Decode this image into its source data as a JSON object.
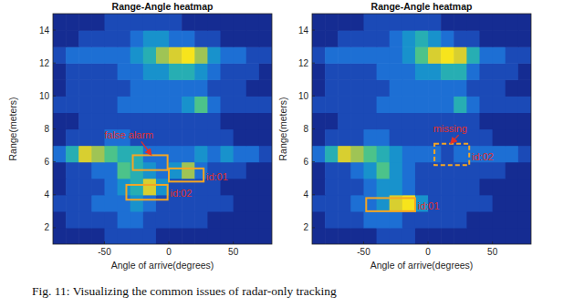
{
  "chart_data": [
    {
      "type": "heatmap",
      "title": "Range-Angle heatmap",
      "x_label": "Angle of arrive(degrees)",
      "y_label": "Range(meters)",
      "xlim": [
        -90,
        80
      ],
      "ylim": [
        1,
        15
      ],
      "xticks": [
        -50,
        0,
        50
      ],
      "yticks": [
        2,
        4,
        6,
        8,
        10,
        12,
        14
      ],
      "angle_bins": [
        -90,
        -80,
        -70,
        -60,
        -50,
        -40,
        -30,
        -20,
        -10,
        0,
        10,
        20,
        30,
        40,
        50,
        60,
        70,
        80
      ],
      "range_bins": [
        1,
        2,
        3,
        4,
        5,
        6,
        7,
        8,
        9,
        10,
        11,
        12,
        13,
        14,
        15
      ],
      "color_range": [
        0,
        9
      ],
      "cells": [
        [
          1,
          1,
          1,
          1,
          2,
          2,
          2,
          2,
          1,
          1,
          1,
          1,
          1,
          1,
          1,
          1,
          1
        ],
        [
          1,
          2,
          2,
          2,
          2,
          3,
          3,
          2,
          2,
          2,
          2,
          2,
          1,
          1,
          1,
          1,
          1
        ],
        [
          2,
          2,
          2,
          3,
          3,
          3,
          4,
          3,
          2,
          2,
          2,
          2,
          2,
          2,
          1,
          1,
          1
        ],
        [
          1,
          2,
          2,
          2,
          3,
          4,
          5,
          8,
          4,
          2,
          2,
          2,
          2,
          1,
          1,
          1,
          1
        ],
        [
          1,
          2,
          2,
          3,
          3,
          6,
          5,
          4,
          3,
          4,
          7,
          3,
          2,
          2,
          2,
          1,
          1
        ],
        [
          3,
          5,
          8,
          7,
          6,
          5,
          5,
          3,
          3,
          3,
          3,
          4,
          3,
          4,
          3,
          3,
          2
        ],
        [
          1,
          2,
          2,
          2,
          3,
          3,
          2,
          2,
          2,
          2,
          2,
          2,
          2,
          2,
          1,
          1,
          1
        ],
        [
          1,
          1,
          2,
          2,
          2,
          2,
          2,
          2,
          2,
          2,
          2,
          2,
          2,
          1,
          1,
          1,
          1
        ],
        [
          2,
          2,
          2,
          2,
          2,
          3,
          3,
          3,
          3,
          3,
          4,
          6,
          3,
          2,
          2,
          2,
          2
        ],
        [
          1,
          2,
          2,
          2,
          2,
          2,
          3,
          3,
          3,
          3,
          3,
          3,
          2,
          2,
          2,
          1,
          1
        ],
        [
          1,
          2,
          2,
          2,
          2,
          3,
          3,
          4,
          4,
          5,
          5,
          4,
          3,
          2,
          2,
          2,
          1
        ],
        [
          2,
          3,
          3,
          3,
          3,
          3,
          4,
          5,
          7,
          8,
          9,
          7,
          4,
          3,
          3,
          2,
          2
        ],
        [
          1,
          1,
          2,
          2,
          2,
          2,
          3,
          4,
          4,
          3,
          3,
          2,
          2,
          1,
          1,
          1,
          1
        ],
        [
          1,
          1,
          1,
          1,
          2,
          2,
          2,
          2,
          2,
          2,
          1,
          1,
          1,
          1,
          1,
          1,
          1
        ]
      ],
      "boxes": [
        {
          "x": [
            -28,
            -1
          ],
          "y": [
            5.5,
            6.4
          ],
          "line_style": "solid"
        },
        {
          "x": [
            0,
            27
          ],
          "y": [
            4.8,
            5.6
          ],
          "line_style": "solid",
          "label": "id:01",
          "label_at": [
            29,
            5.1
          ]
        },
        {
          "x": [
            -33,
            -1
          ],
          "y": [
            3.7,
            4.6
          ],
          "line_style": "solid",
          "label": "id:02",
          "label_at": [
            1,
            4.1
          ]
        }
      ],
      "notes": [
        {
          "text": "false alarm",
          "at": [
            -50,
            7.4
          ],
          "arrow_to": [
            -14,
            6.45
          ]
        }
      ]
    },
    {
      "type": "heatmap",
      "title": "Range-Angle heatmap",
      "x_label": "Angle of arrive(degrees)",
      "y_label": "Range(meters)",
      "xlim": [
        -90,
        80
      ],
      "ylim": [
        1,
        15
      ],
      "xticks": [
        -50,
        0,
        50
      ],
      "yticks": [
        2,
        4,
        6,
        8,
        10,
        12,
        14
      ],
      "angle_bins": [
        -90,
        -80,
        -70,
        -60,
        -50,
        -40,
        -30,
        -20,
        -10,
        0,
        10,
        20,
        30,
        40,
        50,
        60,
        70,
        80
      ],
      "range_bins": [
        1,
        2,
        3,
        4,
        5,
        6,
        7,
        8,
        9,
        10,
        11,
        12,
        13,
        14,
        15
      ],
      "color_range": [
        0,
        9
      ],
      "cells": [
        [
          1,
          1,
          1,
          1,
          1,
          2,
          2,
          2,
          1,
          1,
          1,
          1,
          1,
          1,
          1,
          1,
          1
        ],
        [
          1,
          2,
          2,
          2,
          3,
          3,
          3,
          2,
          2,
          2,
          2,
          2,
          1,
          1,
          1,
          1,
          1
        ],
        [
          2,
          2,
          2,
          3,
          3,
          4,
          8,
          9,
          4,
          2,
          2,
          2,
          2,
          2,
          1,
          1,
          1
        ],
        [
          1,
          2,
          2,
          2,
          3,
          4,
          4,
          3,
          2,
          2,
          2,
          2,
          2,
          1,
          1,
          1,
          1
        ],
        [
          1,
          2,
          2,
          3,
          4,
          6,
          4,
          3,
          2,
          2,
          2,
          2,
          2,
          2,
          2,
          1,
          1
        ],
        [
          3,
          5,
          8,
          7,
          6,
          5,
          4,
          3,
          3,
          3,
          2,
          3,
          3,
          3,
          3,
          3,
          2
        ],
        [
          1,
          2,
          2,
          2,
          3,
          3,
          2,
          2,
          2,
          2,
          2,
          2,
          2,
          2,
          1,
          1,
          1
        ],
        [
          1,
          1,
          2,
          2,
          2,
          2,
          2,
          2,
          2,
          2,
          2,
          2,
          2,
          1,
          1,
          1,
          1
        ],
        [
          2,
          2,
          2,
          2,
          2,
          3,
          3,
          3,
          3,
          3,
          3,
          5,
          3,
          2,
          2,
          2,
          2
        ],
        [
          1,
          2,
          2,
          2,
          2,
          2,
          3,
          3,
          3,
          3,
          3,
          3,
          2,
          2,
          2,
          1,
          1
        ],
        [
          1,
          2,
          2,
          2,
          2,
          3,
          3,
          3,
          4,
          4,
          5,
          5,
          3,
          2,
          2,
          2,
          1
        ],
        [
          2,
          3,
          3,
          3,
          3,
          3,
          3,
          4,
          6,
          8,
          9,
          8,
          5,
          3,
          3,
          2,
          2
        ],
        [
          1,
          1,
          2,
          2,
          2,
          2,
          3,
          4,
          5,
          4,
          3,
          2,
          2,
          1,
          1,
          1,
          1
        ],
        [
          1,
          1,
          1,
          1,
          2,
          2,
          2,
          2,
          2,
          2,
          1,
          1,
          1,
          1,
          1,
          1,
          1
        ]
      ],
      "boxes": [
        {
          "x": [
            5,
            32
          ],
          "y": [
            5.8,
            7.1
          ],
          "line_style": "dashed",
          "label": "id:02",
          "label_at": [
            34,
            6.3
          ]
        },
        {
          "x": [
            -48,
            -10
          ],
          "y": [
            3.0,
            3.8
          ],
          "line_style": "solid",
          "label": "id:01",
          "label_at": [
            -8,
            3.3
          ]
        }
      ],
      "notes": [
        {
          "text": "missing",
          "at": [
            4,
            7.8
          ],
          "arrow_to": [
            18,
            7.15
          ]
        }
      ]
    }
  ],
  "caption": "Fig. 11: Visualizing the common issues of radar-only tracking"
}
